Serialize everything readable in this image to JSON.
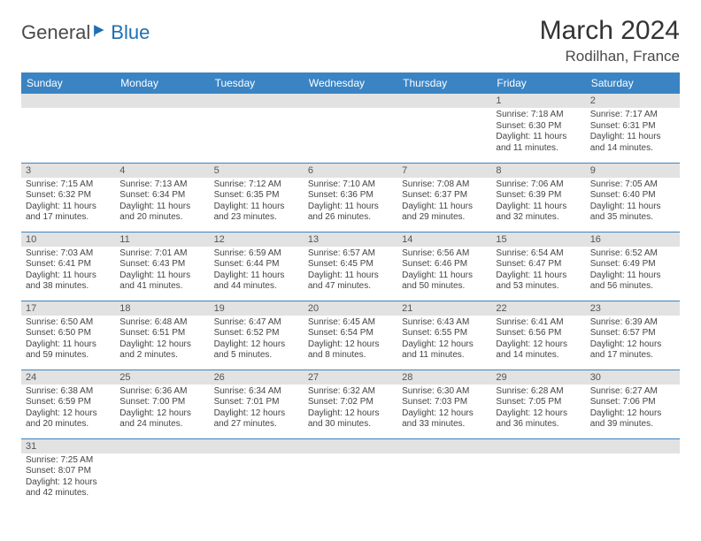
{
  "brand": {
    "text1": "General",
    "text2": "Blue"
  },
  "title": "March 2024",
  "location": "Rodilhan, France",
  "colors": {
    "header_bg": "#3a84c4",
    "header_text": "#ffffff",
    "daynum_bg": "#e2e2e2",
    "border": "#3a84c4",
    "logo_blue": "#1f6fb2"
  },
  "day_headers": [
    "Sunday",
    "Monday",
    "Tuesday",
    "Wednesday",
    "Thursday",
    "Friday",
    "Saturday"
  ],
  "weeks": [
    [
      {
        "n": "",
        "sr": "",
        "ss": "",
        "dl": ""
      },
      {
        "n": "",
        "sr": "",
        "ss": "",
        "dl": ""
      },
      {
        "n": "",
        "sr": "",
        "ss": "",
        "dl": ""
      },
      {
        "n": "",
        "sr": "",
        "ss": "",
        "dl": ""
      },
      {
        "n": "",
        "sr": "",
        "ss": "",
        "dl": ""
      },
      {
        "n": "1",
        "sr": "Sunrise: 7:18 AM",
        "ss": "Sunset: 6:30 PM",
        "dl": "Daylight: 11 hours and 11 minutes."
      },
      {
        "n": "2",
        "sr": "Sunrise: 7:17 AM",
        "ss": "Sunset: 6:31 PM",
        "dl": "Daylight: 11 hours and 14 minutes."
      }
    ],
    [
      {
        "n": "3",
        "sr": "Sunrise: 7:15 AM",
        "ss": "Sunset: 6:32 PM",
        "dl": "Daylight: 11 hours and 17 minutes."
      },
      {
        "n": "4",
        "sr": "Sunrise: 7:13 AM",
        "ss": "Sunset: 6:34 PM",
        "dl": "Daylight: 11 hours and 20 minutes."
      },
      {
        "n": "5",
        "sr": "Sunrise: 7:12 AM",
        "ss": "Sunset: 6:35 PM",
        "dl": "Daylight: 11 hours and 23 minutes."
      },
      {
        "n": "6",
        "sr": "Sunrise: 7:10 AM",
        "ss": "Sunset: 6:36 PM",
        "dl": "Daylight: 11 hours and 26 minutes."
      },
      {
        "n": "7",
        "sr": "Sunrise: 7:08 AM",
        "ss": "Sunset: 6:37 PM",
        "dl": "Daylight: 11 hours and 29 minutes."
      },
      {
        "n": "8",
        "sr": "Sunrise: 7:06 AM",
        "ss": "Sunset: 6:39 PM",
        "dl": "Daylight: 11 hours and 32 minutes."
      },
      {
        "n": "9",
        "sr": "Sunrise: 7:05 AM",
        "ss": "Sunset: 6:40 PM",
        "dl": "Daylight: 11 hours and 35 minutes."
      }
    ],
    [
      {
        "n": "10",
        "sr": "Sunrise: 7:03 AM",
        "ss": "Sunset: 6:41 PM",
        "dl": "Daylight: 11 hours and 38 minutes."
      },
      {
        "n": "11",
        "sr": "Sunrise: 7:01 AM",
        "ss": "Sunset: 6:43 PM",
        "dl": "Daylight: 11 hours and 41 minutes."
      },
      {
        "n": "12",
        "sr": "Sunrise: 6:59 AM",
        "ss": "Sunset: 6:44 PM",
        "dl": "Daylight: 11 hours and 44 minutes."
      },
      {
        "n": "13",
        "sr": "Sunrise: 6:57 AM",
        "ss": "Sunset: 6:45 PM",
        "dl": "Daylight: 11 hours and 47 minutes."
      },
      {
        "n": "14",
        "sr": "Sunrise: 6:56 AM",
        "ss": "Sunset: 6:46 PM",
        "dl": "Daylight: 11 hours and 50 minutes."
      },
      {
        "n": "15",
        "sr": "Sunrise: 6:54 AM",
        "ss": "Sunset: 6:47 PM",
        "dl": "Daylight: 11 hours and 53 minutes."
      },
      {
        "n": "16",
        "sr": "Sunrise: 6:52 AM",
        "ss": "Sunset: 6:49 PM",
        "dl": "Daylight: 11 hours and 56 minutes."
      }
    ],
    [
      {
        "n": "17",
        "sr": "Sunrise: 6:50 AM",
        "ss": "Sunset: 6:50 PM",
        "dl": "Daylight: 11 hours and 59 minutes."
      },
      {
        "n": "18",
        "sr": "Sunrise: 6:48 AM",
        "ss": "Sunset: 6:51 PM",
        "dl": "Daylight: 12 hours and 2 minutes."
      },
      {
        "n": "19",
        "sr": "Sunrise: 6:47 AM",
        "ss": "Sunset: 6:52 PM",
        "dl": "Daylight: 12 hours and 5 minutes."
      },
      {
        "n": "20",
        "sr": "Sunrise: 6:45 AM",
        "ss": "Sunset: 6:54 PM",
        "dl": "Daylight: 12 hours and 8 minutes."
      },
      {
        "n": "21",
        "sr": "Sunrise: 6:43 AM",
        "ss": "Sunset: 6:55 PM",
        "dl": "Daylight: 12 hours and 11 minutes."
      },
      {
        "n": "22",
        "sr": "Sunrise: 6:41 AM",
        "ss": "Sunset: 6:56 PM",
        "dl": "Daylight: 12 hours and 14 minutes."
      },
      {
        "n": "23",
        "sr": "Sunrise: 6:39 AM",
        "ss": "Sunset: 6:57 PM",
        "dl": "Daylight: 12 hours and 17 minutes."
      }
    ],
    [
      {
        "n": "24",
        "sr": "Sunrise: 6:38 AM",
        "ss": "Sunset: 6:59 PM",
        "dl": "Daylight: 12 hours and 20 minutes."
      },
      {
        "n": "25",
        "sr": "Sunrise: 6:36 AM",
        "ss": "Sunset: 7:00 PM",
        "dl": "Daylight: 12 hours and 24 minutes."
      },
      {
        "n": "26",
        "sr": "Sunrise: 6:34 AM",
        "ss": "Sunset: 7:01 PM",
        "dl": "Daylight: 12 hours and 27 minutes."
      },
      {
        "n": "27",
        "sr": "Sunrise: 6:32 AM",
        "ss": "Sunset: 7:02 PM",
        "dl": "Daylight: 12 hours and 30 minutes."
      },
      {
        "n": "28",
        "sr": "Sunrise: 6:30 AM",
        "ss": "Sunset: 7:03 PM",
        "dl": "Daylight: 12 hours and 33 minutes."
      },
      {
        "n": "29",
        "sr": "Sunrise: 6:28 AM",
        "ss": "Sunset: 7:05 PM",
        "dl": "Daylight: 12 hours and 36 minutes."
      },
      {
        "n": "30",
        "sr": "Sunrise: 6:27 AM",
        "ss": "Sunset: 7:06 PM",
        "dl": "Daylight: 12 hours and 39 minutes."
      }
    ],
    [
      {
        "n": "31",
        "sr": "Sunrise: 7:25 AM",
        "ss": "Sunset: 8:07 PM",
        "dl": "Daylight: 12 hours and 42 minutes."
      },
      {
        "n": "",
        "sr": "",
        "ss": "",
        "dl": ""
      },
      {
        "n": "",
        "sr": "",
        "ss": "",
        "dl": ""
      },
      {
        "n": "",
        "sr": "",
        "ss": "",
        "dl": ""
      },
      {
        "n": "",
        "sr": "",
        "ss": "",
        "dl": ""
      },
      {
        "n": "",
        "sr": "",
        "ss": "",
        "dl": ""
      },
      {
        "n": "",
        "sr": "",
        "ss": "",
        "dl": ""
      }
    ]
  ]
}
